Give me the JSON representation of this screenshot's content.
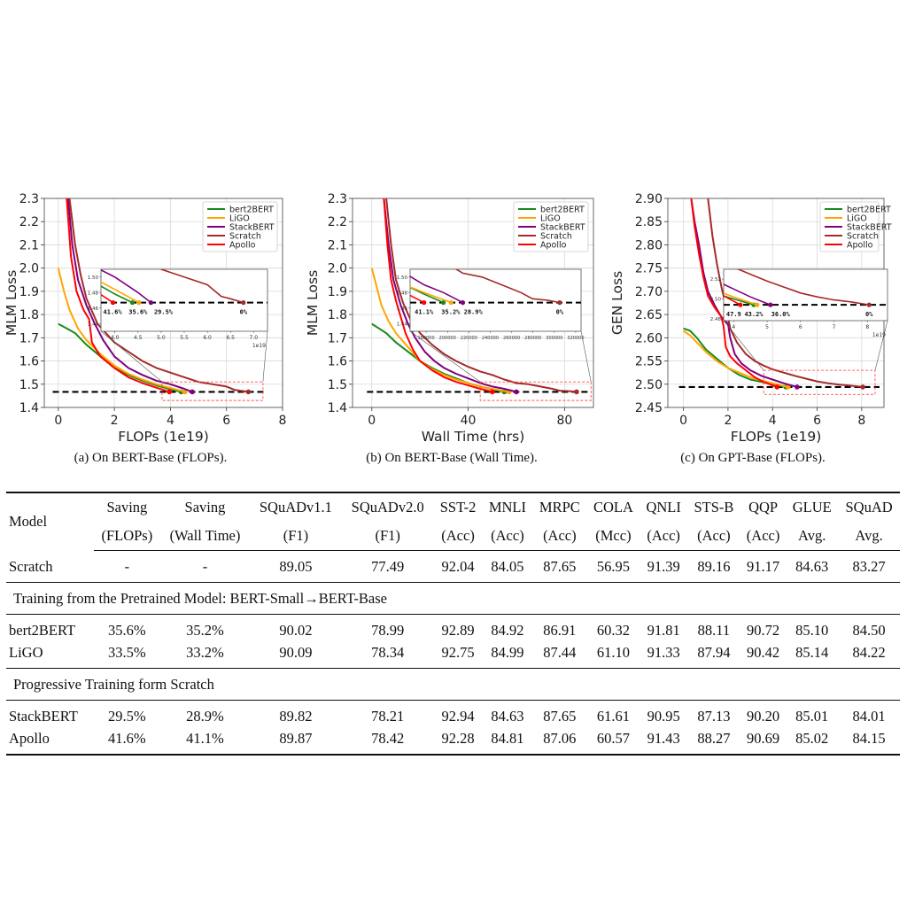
{
  "colors": {
    "bert2BERT": "#1a8a1a",
    "LiGO": "#ffa500",
    "StackBERT": "#800080",
    "Scratch": "#a52a2a",
    "Apollo": "#ff0000",
    "target_line": "#000000",
    "zoom_box": "#ff4d4d",
    "grid": "#d9d9d9"
  },
  "chart_data": [
    {
      "id": "a",
      "type": "line",
      "caption": "(a) On BERT-Base (FLOPs).",
      "title": "",
      "xlabel": "FLOPs (1e19)",
      "ylabel": "MLM Loss",
      "xlim": [
        -0.5,
        8
      ],
      "ylim": [
        1.4,
        2.3
      ],
      "xticks": [
        0,
        2,
        4,
        6,
        8
      ],
      "yticks": [
        1.4,
        1.5,
        1.6,
        1.7,
        1.8,
        1.9,
        2.0,
        2.1,
        2.2,
        2.3
      ],
      "xtick_labels": [
        "0",
        "2",
        "4",
        "6",
        "8"
      ],
      "ytick_labels": [
        "1.4",
        "1.5",
        "1.6",
        "1.7",
        "1.8",
        "1.9",
        "2.0",
        "2.1",
        "2.2",
        "2.3"
      ],
      "grid": true,
      "legend_position": "top-right",
      "target_loss": 1.467,
      "target_span": [
        -0.2,
        7.4
      ],
      "zoom_region": {
        "x": [
          3.7,
          7.3
        ],
        "y": [
          1.43,
          1.51
        ]
      },
      "series": [
        {
          "name": "bert2BERT",
          "x": [
            0,
            0.3,
            0.6,
            1.0,
            1.5,
            2.0,
            2.5,
            3.0,
            3.5,
            4.0,
            4.38
          ],
          "y": [
            1.76,
            1.74,
            1.72,
            1.67,
            1.62,
            1.57,
            1.54,
            1.515,
            1.495,
            1.478,
            1.467
          ]
        },
        {
          "name": "LiGO",
          "x": [
            0,
            0.2,
            0.4,
            0.7,
            1.0,
            1.5,
            2.0,
            2.5,
            3.0,
            3.5,
            4.0,
            4.52
          ],
          "y": [
            2.0,
            1.9,
            1.82,
            1.74,
            1.69,
            1.63,
            1.58,
            1.545,
            1.52,
            1.5,
            1.484,
            1.467
          ]
        },
        {
          "name": "StackBERT",
          "x": [
            0.35,
            0.5,
            0.7,
            1.0,
            1.3,
            1.6,
            2.0,
            2.5,
            3.0,
            3.5,
            4.0,
            4.5,
            4.78
          ],
          "y": [
            2.3,
            2.1,
            1.95,
            1.84,
            1.76,
            1.69,
            1.62,
            1.57,
            1.54,
            1.515,
            1.5,
            1.48,
            1.467
          ]
        },
        {
          "name": "Scratch",
          "x": [
            0.4,
            0.6,
            0.8,
            1.0,
            1.4,
            2.0,
            2.5,
            3.0,
            3.5,
            4.0,
            4.5,
            5.0,
            5.5,
            6.0,
            6.3,
            6.5,
            6.78
          ],
          "y": [
            2.3,
            2.1,
            1.97,
            1.87,
            1.76,
            1.68,
            1.64,
            1.6,
            1.57,
            1.55,
            1.53,
            1.51,
            1.5,
            1.49,
            1.475,
            1.472,
            1.467
          ]
        },
        {
          "name": "Apollo",
          "x": [
            0.3,
            0.45,
            0.65,
            0.9,
            1.1,
            1.2,
            1.5,
            2.0,
            2.5,
            3.0,
            3.5,
            3.96
          ],
          "y": [
            2.3,
            2.05,
            1.9,
            1.82,
            1.78,
            1.68,
            1.62,
            1.57,
            1.53,
            1.505,
            1.485,
            1.467
          ]
        }
      ],
      "inset": {
        "xlim": [
          3.7,
          7.3
        ],
        "ylim": [
          1.43,
          1.51
        ],
        "xticks": [
          4.0,
          4.5,
          5.0,
          5.5,
          6.0,
          6.5,
          7.0
        ],
        "xtick_labels": [
          "4.0",
          "4.5",
          "5.0",
          "5.5",
          "6.0",
          "6.5",
          "7.0"
        ],
        "yticks": [
          1.44,
          1.46,
          1.48,
          1.5
        ],
        "ytick_labels": [
          "1.44",
          "1.46",
          "1.48",
          "1.50"
        ],
        "offset_label": "1e19",
        "annotations": [
          {
            "text": "41.6%",
            "x": 3.95
          },
          {
            "text": "35.6%",
            "x": 4.5
          },
          {
            "text": "29.5%",
            "x": 5.05
          },
          {
            "text": "0%",
            "x": 6.78
          }
        ]
      }
    },
    {
      "id": "b",
      "type": "line",
      "caption": "(b) On BERT-Base (Wall Time).",
      "title": "",
      "xlabel": "Wall Time (hrs)",
      "ylabel": "MLM Loss",
      "xlim": [
        -8,
        92
      ],
      "ylim": [
        1.4,
        2.3
      ],
      "xticks": [
        0,
        40,
        80
      ],
      "yticks": [
        1.4,
        1.5,
        1.6,
        1.7,
        1.8,
        1.9,
        2.0,
        2.1,
        2.2,
        2.3
      ],
      "xtick_labels": [
        "0",
        "40",
        "80"
      ],
      "ytick_labels": [
        "1.4",
        "1.5",
        "1.6",
        "1.7",
        "1.8",
        "1.9",
        "2.0",
        "2.1",
        "2.2",
        "2.3"
      ],
      "grid": true,
      "legend_position": "top-right",
      "target_loss": 1.467,
      "target_span": [
        -2,
        90
      ],
      "zoom_region": {
        "x": [
          45,
          91
        ],
        "y": [
          1.43,
          1.51
        ]
      },
      "series": [
        {
          "name": "bert2BERT",
          "x": [
            0,
            3,
            6,
            10,
            15,
            20,
            25,
            30,
            35,
            40,
            45,
            50,
            55
          ],
          "y": [
            1.76,
            1.74,
            1.72,
            1.68,
            1.64,
            1.6,
            1.57,
            1.545,
            1.525,
            1.505,
            1.49,
            1.478,
            1.467
          ]
        },
        {
          "name": "LiGO",
          "x": [
            0,
            2,
            4,
            7,
            10,
            15,
            20,
            25,
            30,
            35,
            40,
            45,
            50,
            57
          ],
          "y": [
            2.0,
            1.92,
            1.84,
            1.77,
            1.72,
            1.66,
            1.6,
            1.565,
            1.54,
            1.52,
            1.505,
            1.49,
            1.48,
            1.467
          ]
        },
        {
          "name": "StackBERT",
          "x": [
            5,
            7,
            9,
            12,
            15,
            18,
            22,
            26,
            30,
            35,
            40,
            45,
            50,
            55,
            60
          ],
          "y": [
            2.3,
            2.1,
            1.95,
            1.84,
            1.76,
            1.7,
            1.64,
            1.6,
            1.57,
            1.545,
            1.525,
            1.505,
            1.49,
            1.48,
            1.467
          ]
        },
        {
          "name": "Scratch",
          "x": [
            6,
            8,
            10,
            13,
            16,
            20,
            25,
            30,
            35,
            40,
            45,
            50,
            55,
            60,
            65,
            70,
            75,
            78,
            82,
            85
          ],
          "y": [
            2.3,
            2.1,
            1.95,
            1.85,
            1.78,
            1.72,
            1.67,
            1.63,
            1.6,
            1.575,
            1.555,
            1.54,
            1.52,
            1.505,
            1.5,
            1.49,
            1.48,
            1.472,
            1.47,
            1.467
          ]
        },
        {
          "name": "Apollo",
          "x": [
            5,
            6.5,
            8,
            10,
            12,
            14,
            17,
            20,
            25,
            30,
            35,
            40,
            45,
            50
          ],
          "y": [
            2.3,
            2.1,
            1.95,
            1.86,
            1.79,
            1.72,
            1.65,
            1.6,
            1.56,
            1.53,
            1.51,
            1.495,
            1.48,
            1.467
          ]
        }
      ],
      "inset": {
        "xlim": [
          165000,
          325000
        ],
        "ylim": [
          1.43,
          1.51
        ],
        "xticks": [
          180000,
          200000,
          220000,
          240000,
          260000,
          280000,
          300000,
          320000
        ],
        "xtick_labels": [
          "180000",
          "200000",
          "220000",
          "240000",
          "260000",
          "280000",
          "300000",
          "320000"
        ],
        "yticks": [
          1.44,
          1.46,
          1.48,
          1.5
        ],
        "ytick_labels": [
          "1.44",
          "1.46",
          "1.48",
          "1.50"
        ],
        "offset_label": "",
        "annotations": [
          {
            "text": "41.1%",
            "x": 178000
          },
          {
            "text": "35.2%",
            "x": 203000
          },
          {
            "text": "28.9%",
            "x": 224000
          },
          {
            "text": "0%",
            "x": 305000
          }
        ]
      }
    },
    {
      "id": "c",
      "type": "line",
      "caption": "(c) On GPT-Base (FLOPs).",
      "title": "",
      "xlabel": "FLOPs (1e19)",
      "ylabel": "GEN Loss",
      "xlim": [
        -0.7,
        9
      ],
      "ylim": [
        2.45,
        2.9
      ],
      "xticks": [
        0,
        2,
        4,
        6,
        8
      ],
      "yticks": [
        2.45,
        2.5,
        2.55,
        2.6,
        2.65,
        2.7,
        2.75,
        2.8,
        2.85,
        2.9
      ],
      "xtick_labels": [
        "0",
        "2",
        "4",
        "6",
        "8"
      ],
      "ytick_labels": [
        "2.45",
        "2.50",
        "2.55",
        "2.60",
        "2.65",
        "2.70",
        "2.75",
        "2.80",
        "2.85",
        "2.90"
      ],
      "grid": true,
      "legend_position": "top-right",
      "target_loss": 2.494,
      "target_span": [
        -0.2,
        8.8
      ],
      "zoom_region": {
        "x": [
          3.6,
          8.6
        ],
        "y": [
          2.478,
          2.53
        ]
      },
      "series": [
        {
          "name": "bert2BERT",
          "x": [
            0,
            0.3,
            0.6,
            1.0,
            1.5,
            2.0,
            2.5,
            3.0,
            3.5,
            4.0,
            4.6
          ],
          "y": [
            2.62,
            2.615,
            2.6,
            2.575,
            2.555,
            2.535,
            2.52,
            2.51,
            2.505,
            2.5,
            2.494
          ]
        },
        {
          "name": "LiGO",
          "x": [
            0,
            0.3,
            0.6,
            1.0,
            1.5,
            2.0,
            2.5,
            3.0,
            3.5,
            4.0,
            4.7
          ],
          "y": [
            2.615,
            2.605,
            2.59,
            2.57,
            2.55,
            2.535,
            2.525,
            2.515,
            2.508,
            2.502,
            2.494
          ]
        },
        {
          "name": "StackBERT",
          "x": [
            0.35,
            0.5,
            0.7,
            0.9,
            1.1,
            1.4,
            1.7,
            2.0,
            2.1,
            2.3,
            2.6,
            3.0,
            3.5,
            4.0,
            4.5,
            5.1
          ],
          "y": [
            2.9,
            2.85,
            2.8,
            2.74,
            2.7,
            2.67,
            2.645,
            2.63,
            2.6,
            2.565,
            2.545,
            2.53,
            2.518,
            2.51,
            2.502,
            2.494
          ]
        },
        {
          "name": "Scratch",
          "x": [
            1.1,
            1.3,
            1.5,
            1.7,
            1.9,
            2.1,
            2.4,
            2.8,
            3.2,
            3.6,
            4.0,
            4.5,
            5.0,
            5.5,
            6.0,
            6.5,
            7.0,
            7.5,
            8.05
          ],
          "y": [
            2.9,
            2.82,
            2.76,
            2.71,
            2.67,
            2.62,
            2.59,
            2.565,
            2.55,
            2.54,
            2.532,
            2.525,
            2.518,
            2.512,
            2.506,
            2.502,
            2.499,
            2.497,
            2.494
          ]
        },
        {
          "name": "Apollo",
          "x": [
            0.35,
            0.5,
            0.7,
            0.9,
            1.1,
            1.4,
            1.7,
            1.8,
            1.9,
            2.1,
            2.4,
            2.8,
            3.2,
            3.6,
            4.2
          ],
          "y": [
            2.9,
            2.84,
            2.78,
            2.73,
            2.69,
            2.665,
            2.645,
            2.625,
            2.58,
            2.56,
            2.545,
            2.53,
            2.515,
            2.505,
            2.494
          ]
        }
      ],
      "inset": {
        "xlim": [
          3.7,
          8.6
        ],
        "ylim": [
          2.478,
          2.53
        ],
        "xticks": [
          4,
          5,
          6,
          7,
          8
        ],
        "xtick_labels": [
          "4",
          "5",
          "6",
          "7",
          "8"
        ],
        "yticks": [
          2.48,
          2.5,
          2.52
        ],
        "ytick_labels": [
          "2.48",
          "2.50",
          "2.52"
        ],
        "offset_label": "1e19",
        "annotations": [
          {
            "text": "47.9",
            "x": 4.0
          },
          {
            "text": "43.2%",
            "x": 4.6
          },
          {
            "text": "36.0%",
            "x": 5.4
          },
          {
            "text": "0%",
            "x": 8.05
          }
        ]
      }
    }
  ],
  "table": {
    "headers": [
      {
        "line1": "Model",
        "line2": ""
      },
      {
        "line1": "Saving",
        "line2": "(FLOPs)"
      },
      {
        "line1": "Saving",
        "line2": "(Wall Time)"
      },
      {
        "line1": "SQuADv1.1",
        "line2": "(F1)"
      },
      {
        "line1": "SQuADv2.0",
        "line2": "(F1)"
      },
      {
        "line1": "SST-2",
        "line2": "(Acc)"
      },
      {
        "line1": "MNLI",
        "line2": "(Acc)"
      },
      {
        "line1": "MRPC",
        "line2": "(Acc)"
      },
      {
        "line1": "COLA",
        "line2": "(Mcc)"
      },
      {
        "line1": "QNLI",
        "line2": "(Acc)"
      },
      {
        "line1": "STS-B",
        "line2": "(Acc)"
      },
      {
        "line1": "QQP",
        "line2": "(Acc)"
      },
      {
        "line1": "GLUE",
        "line2": "Avg."
      },
      {
        "line1": "SQuAD",
        "line2": "Avg."
      }
    ],
    "scratch_row": [
      "Scratch",
      "-",
      "-",
      "89.05",
      "77.49",
      "92.04",
      "84.05",
      "87.65",
      "56.95",
      "91.39",
      "89.16",
      "91.17",
      "84.63",
      "83.27"
    ],
    "section1_title": "Training from the Pretrained Model: BERT-Small→BERT-Base",
    "section1_rows": [
      [
        "bert2BERT",
        "35.6%",
        "35.2%",
        "90.02",
        "78.99",
        "92.89",
        "84.92",
        "86.91",
        "60.32",
        "91.81",
        "88.11",
        "90.72",
        "85.10",
        "84.50"
      ],
      [
        "LiGO",
        "33.5%",
        "33.2%",
        "90.09",
        "78.34",
        "92.75",
        "84.99",
        "87.44",
        "61.10",
        "91.33",
        "87.94",
        "90.42",
        "85.14",
        "84.22"
      ]
    ],
    "section2_title": "Progressive Training form Scratch",
    "section2_rows": [
      [
        "StackBERT",
        "29.5%",
        "28.9%",
        "89.82",
        "78.21",
        "92.94",
        "84.63",
        "87.65",
        "61.61",
        "90.95",
        "87.13",
        "90.20",
        "85.01",
        "84.01"
      ],
      [
        "Apollo",
        "41.6%",
        "41.1%",
        "89.87",
        "78.42",
        "92.28",
        "84.81",
        "87.06",
        "60.57",
        "91.43",
        "88.27",
        "90.69",
        "85.02",
        "84.15"
      ]
    ],
    "bold_cells": [
      [
        "section2_rows",
        1,
        1
      ],
      [
        "section2_rows",
        1,
        2
      ]
    ]
  }
}
